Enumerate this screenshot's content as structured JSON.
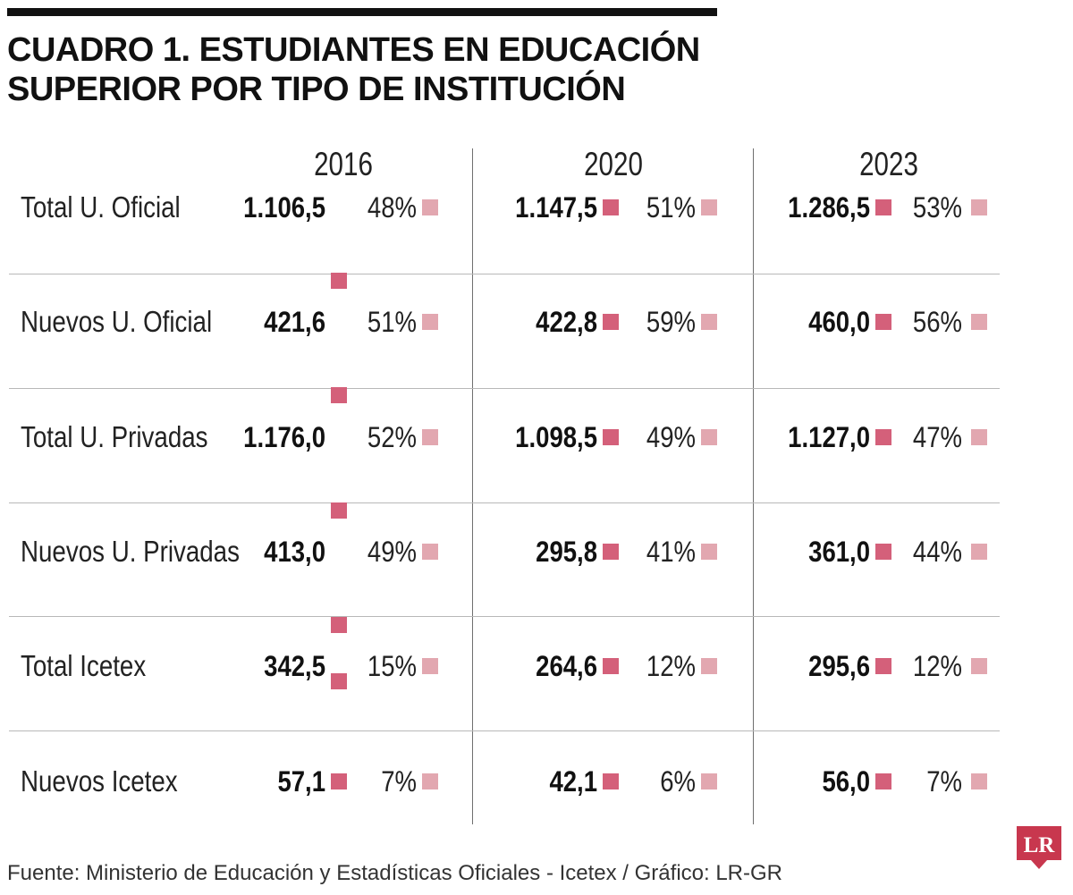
{
  "title": {
    "line1": "CUADRO 1. ESTUDIANTES EN EDUCACIÓN",
    "line2": "SUPERIOR POR TIPO DE INSTITUCIÓN"
  },
  "colors": {
    "value_square": "#d4607a",
    "percent_square": "#e2a7b0",
    "rule": "#111111",
    "logo_bg": "#c8374e"
  },
  "source": "Fuente: Ministerio de Educación y Estadísticas Oficiales - Icetex / Gráfico: LR-GR",
  "logo": {
    "text": "LR",
    "icon": "lr-logo-icon"
  },
  "chart_data": {
    "type": "table",
    "title": "CUADRO 1. ESTUDIANTES EN EDUCACIÓN SUPERIOR POR TIPO DE INSTITUCIÓN",
    "years": [
      "2016",
      "2020",
      "2023"
    ],
    "rows": [
      {
        "label": "Total U. Oficial",
        "values": [
          "1.106,5",
          "1.147,5",
          "1.286,5"
        ],
        "percents": [
          "48%",
          "51%",
          "53%"
        ]
      },
      {
        "label": "Nuevos U. Oficial",
        "values": [
          "421,6",
          "422,8",
          "460,0"
        ],
        "percents": [
          "51%",
          "59%",
          "56%"
        ]
      },
      {
        "label": "Total U. Privadas",
        "values": [
          "1.176,0",
          "1.098,5",
          "1.127,0"
        ],
        "percents": [
          "52%",
          "49%",
          "47%"
        ]
      },
      {
        "label": "Nuevos U. Privadas",
        "values": [
          "413,0",
          "295,8",
          "361,0"
        ],
        "percents": [
          "49%",
          "41%",
          "44%"
        ]
      },
      {
        "label": "Total Icetex",
        "values": [
          "342,5",
          "264,6",
          "295,6"
        ],
        "percents": [
          "15%",
          "12%",
          "12%"
        ]
      },
      {
        "label": "Nuevos Icetex",
        "values": [
          "57,1",
          "42,1",
          "56,0"
        ],
        "percents": [
          "7%",
          "6%",
          "7%"
        ]
      }
    ],
    "source": "Fuente: Ministerio de Educación y Estadísticas Oficiales - Icetex / Gráfico: LR-GR"
  }
}
